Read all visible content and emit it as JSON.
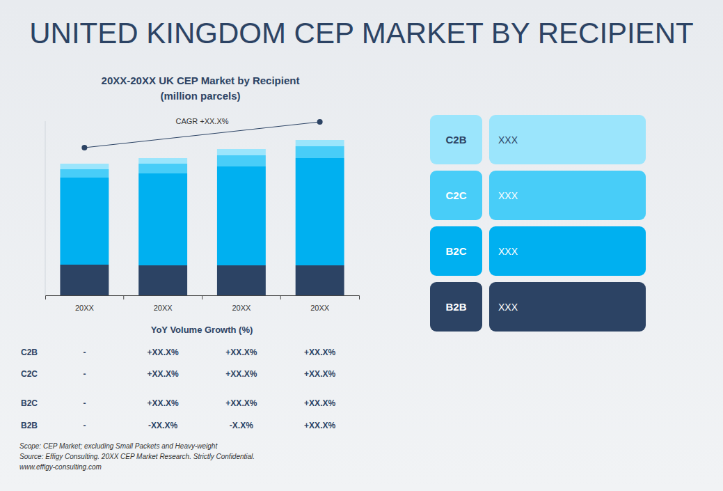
{
  "header": {
    "title": "UNITED KINGDOM CEP MARKET BY RECIPIENT"
  },
  "chart_data": {
    "type": "bar",
    "stacked": true,
    "title": "20XX-20XX UK CEP Market by Recipient",
    "subtitle": "(million parcels)",
    "annotation": "CAGR +XX.X%",
    "categories": [
      "20XX",
      "20XX",
      "20XX",
      "20XX"
    ],
    "series": [
      {
        "name": "B2B",
        "color": "#2c4364",
        "description": "XXX",
        "values": [
          44,
          43,
          43,
          43
        ]
      },
      {
        "name": "B2C",
        "color": "#00b0f0",
        "description": "XXX",
        "values": [
          125,
          132,
          142,
          154
        ]
      },
      {
        "name": "C2C",
        "color": "#48cdf8",
        "description": "XXX",
        "values": [
          12,
          14,
          16,
          17
        ]
      },
      {
        "name": "C2B",
        "color": "#9be5fc",
        "description": "XXX",
        "values": [
          8,
          8,
          9,
          9
        ]
      }
    ],
    "ylim": [
      0,
      250
    ],
    "tick_labels": "x",
    "grid": false,
    "data_labels": false,
    "legend": "right"
  },
  "table": {
    "title": "YoY Volume Growth (%)",
    "rows": [
      {
        "label": "C2B",
        "cells": [
          "-",
          "+XX.X%",
          "+XX.X%",
          "+XX.X%"
        ]
      },
      {
        "label": "C2C",
        "cells": [
          "-",
          "+XX.X%",
          "+XX.X%",
          "+XX.X%"
        ]
      },
      {
        "label": "B2C",
        "cells": [
          "-",
          "+XX.X%",
          "+XX.X%",
          "+XX.X%"
        ]
      },
      {
        "label": "B2B",
        "cells": [
          "-",
          "-XX.X%",
          "-X.X%",
          "+XX.X%"
        ]
      }
    ]
  },
  "footnotes": [
    "Scope: CEP Market; excluding Small Packets and Heavy-weight",
    "Source: Effigy Consulting. 20XX CEP Market Research. Strictly Confidential.",
    "www.effigy-consulting.com"
  ]
}
